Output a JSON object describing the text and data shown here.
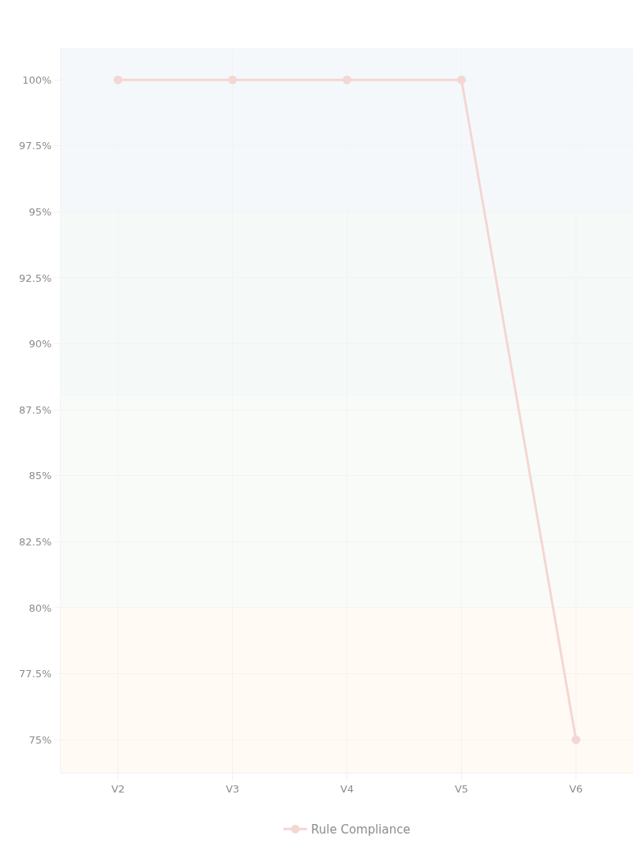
{
  "chart_data": {
    "type": "line",
    "categories": [
      "V2",
      "V3",
      "V4",
      "V5",
      "V6"
    ],
    "series": [
      {
        "name": "Rule Compliance",
        "color": "#f4d6d2",
        "values": [
          100,
          100,
          100,
          100,
          75
        ]
      }
    ],
    "ylim": [
      73.75,
      101.2
    ],
    "yticks": [
      {
        "value": 75,
        "label": "75%"
      },
      {
        "value": 77.5,
        "label": "77.5%"
      },
      {
        "value": 80,
        "label": "80%"
      },
      {
        "value": 82.5,
        "label": "82.5%"
      },
      {
        "value": 85,
        "label": "85%"
      },
      {
        "value": 87.5,
        "label": "87.5%"
      },
      {
        "value": 90,
        "label": "90%"
      },
      {
        "value": 92.5,
        "label": "92.5%"
      },
      {
        "value": 95,
        "label": "95%"
      },
      {
        "value": 97.5,
        "label": "97.5%"
      },
      {
        "value": 100,
        "label": "100%"
      }
    ],
    "bands": [
      {
        "axis": "y",
        "from": 95,
        "to": 101.2,
        "color": "#f4f8fb"
      },
      {
        "axis": "y",
        "from": 88,
        "to": 95,
        "color": "#f5faf9"
      },
      {
        "axis": "y",
        "from": 80,
        "to": 88,
        "color": "#f9fbf9"
      },
      {
        "axis": "y",
        "from": 73.75,
        "to": 80,
        "color": "#fffaf4"
      }
    ],
    "grid": true,
    "legend": "bottom",
    "marker": "circle",
    "line_style": "solid"
  }
}
